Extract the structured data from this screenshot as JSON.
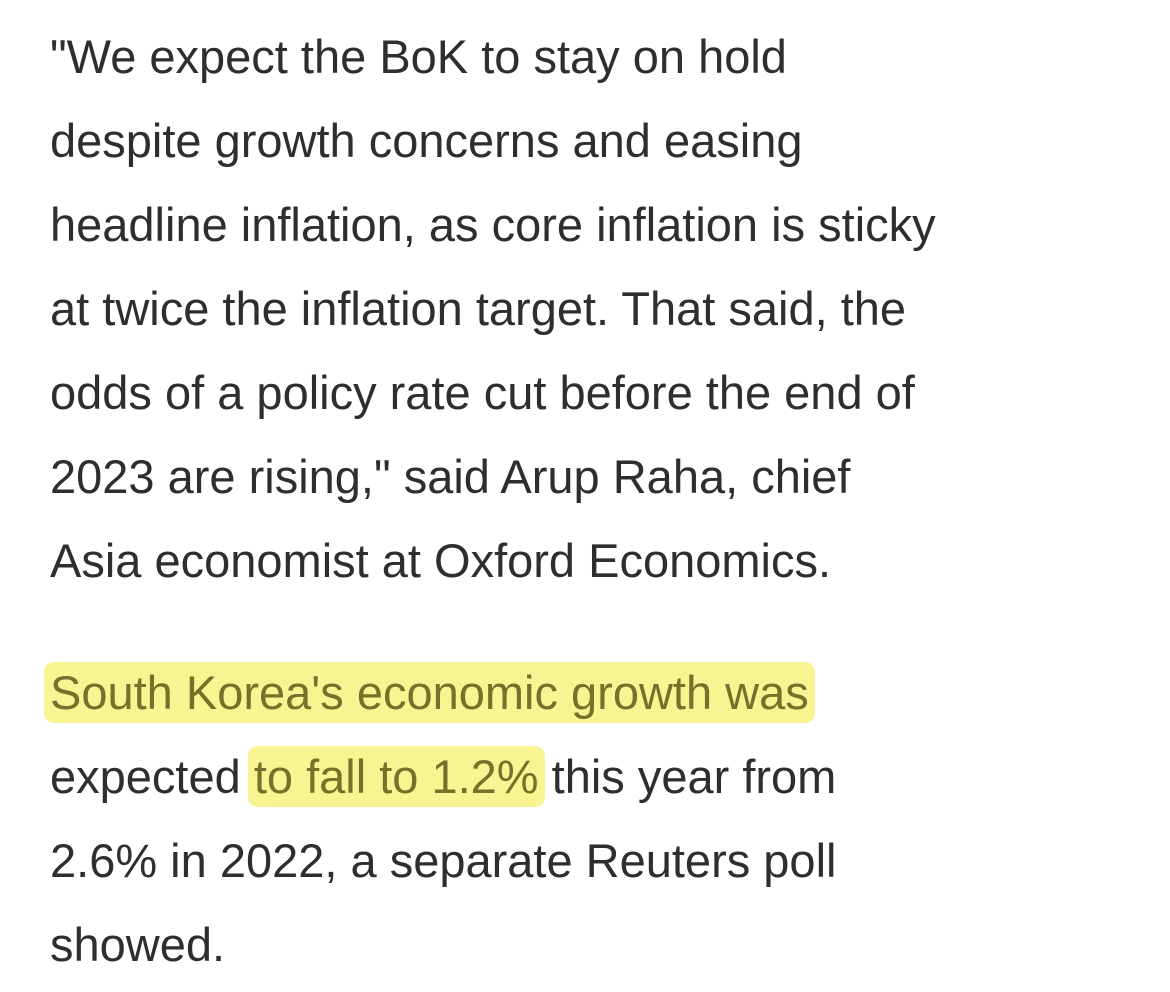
{
  "article": {
    "paragraphs": [
      {
        "lines": [
          [
            {
              "text": "\"We expect the BoK to stay on hold",
              "highlight": false
            }
          ],
          [
            {
              "text": "despite growth concerns and easing",
              "highlight": false
            }
          ],
          [
            {
              "text": "headline inflation, as core inflation is sticky",
              "highlight": false
            }
          ],
          [
            {
              "text": "at twice the inflation target. That said, the",
              "highlight": false
            }
          ],
          [
            {
              "text": "odds of a policy rate cut before the end of",
              "highlight": false
            }
          ],
          [
            {
              "text": "2023 are rising,\" said Arup Raha, chief",
              "highlight": false
            }
          ],
          [
            {
              "text": "Asia economist at Oxford Economics.",
              "highlight": false
            }
          ]
        ]
      },
      {
        "lines": [
          [
            {
              "text": "South Korea's economic growth was",
              "highlight": true
            }
          ],
          [
            {
              "text": "expected ",
              "highlight": false
            },
            {
              "text": "to fall to 1.2%",
              "highlight": true
            },
            {
              "text": " this year from",
              "highlight": false
            }
          ],
          [
            {
              "text": "2.6% in 2022, a separate Reuters poll",
              "highlight": false
            }
          ],
          [
            {
              "text": "showed.",
              "highlight": false
            }
          ]
        ]
      }
    ]
  }
}
